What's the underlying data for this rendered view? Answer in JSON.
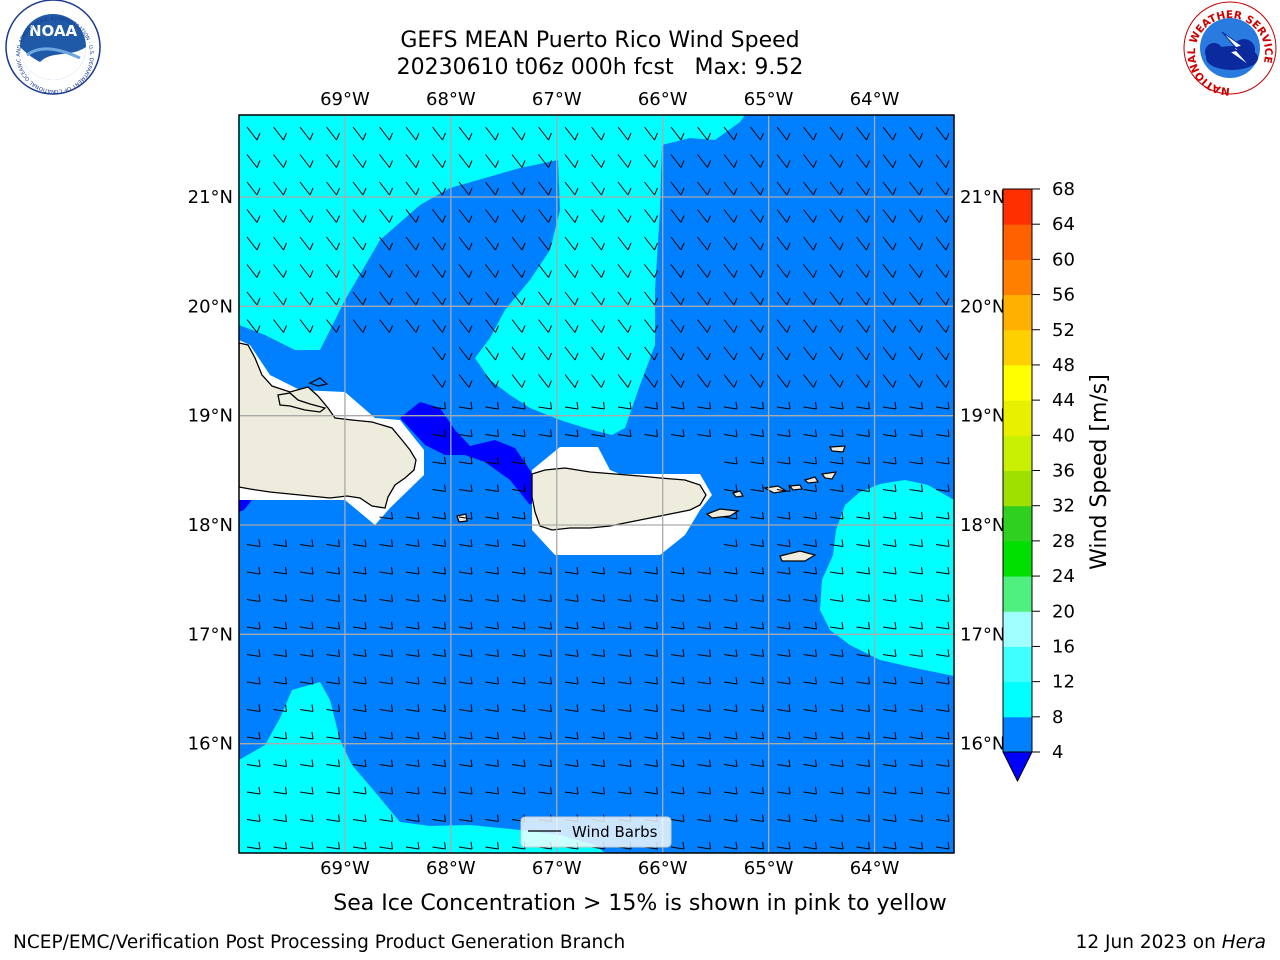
{
  "title": {
    "line1": "GEFS MEAN Puerto Rico Wind Speed",
    "line2": "20230610 t06z 000h fcst   Max: 9.52"
  },
  "map": {
    "lon_labels": [
      "69°W",
      "68°W",
      "67°W",
      "66°W",
      "65°W",
      "64°W"
    ],
    "lat_labels": [
      "21°N",
      "20°N",
      "19°N",
      "18°N",
      "17°N",
      "16°N"
    ],
    "lon_values": [
      -69,
      -68,
      -67,
      -66,
      -65,
      -64
    ],
    "lat_values": [
      21,
      20,
      19,
      18,
      17,
      16
    ],
    "lon_range": [
      -70,
      -63.25
    ],
    "lat_range": [
      15,
      21.75
    ],
    "ocean_color": "#0080ff",
    "land_color": "#eeecdc",
    "legend_label": "Wind Barbs"
  },
  "colorbar": {
    "label": "Wind Speed [m/s]",
    "ticks": [
      "68",
      "64",
      "60",
      "56",
      "52",
      "48",
      "44",
      "40",
      "36",
      "32",
      "28",
      "24",
      "20",
      "16",
      "12",
      "8",
      "4"
    ],
    "levels": [
      4,
      8,
      12,
      16,
      20,
      24,
      28,
      32,
      36,
      40,
      44,
      48,
      52,
      56,
      60,
      64,
      68
    ],
    "colors": [
      "#0080ff",
      "#00ffff",
      "#40ffff",
      "#a0ffff",
      "#50f080",
      "#00e000",
      "#30d020",
      "#a0e000",
      "#c8f000",
      "#e8f000",
      "#ffff00",
      "#ffd000",
      "#ffb000",
      "#ff8000",
      "#ff6000",
      "#ff3000",
      "#ff0000"
    ],
    "under_color": "#0000ff"
  },
  "caption": "Sea Ice Concentration > 15% is shown in pink to yellow",
  "footer": {
    "left": "NCEP/EMC/Verification Post Processing Product Generation Branch",
    "date": "12 Jun 2023 on ",
    "machine": "Hera"
  },
  "logos": {
    "noaa_text": "NOAA",
    "noaa_ring": "NATIONAL OCEANIC AND ATMOSPHERIC ADMINISTRATION · U.S. DEPARTMENT OF COMMERCE",
    "nws_ring": "NATIONAL WEATHER SERVICE"
  }
}
